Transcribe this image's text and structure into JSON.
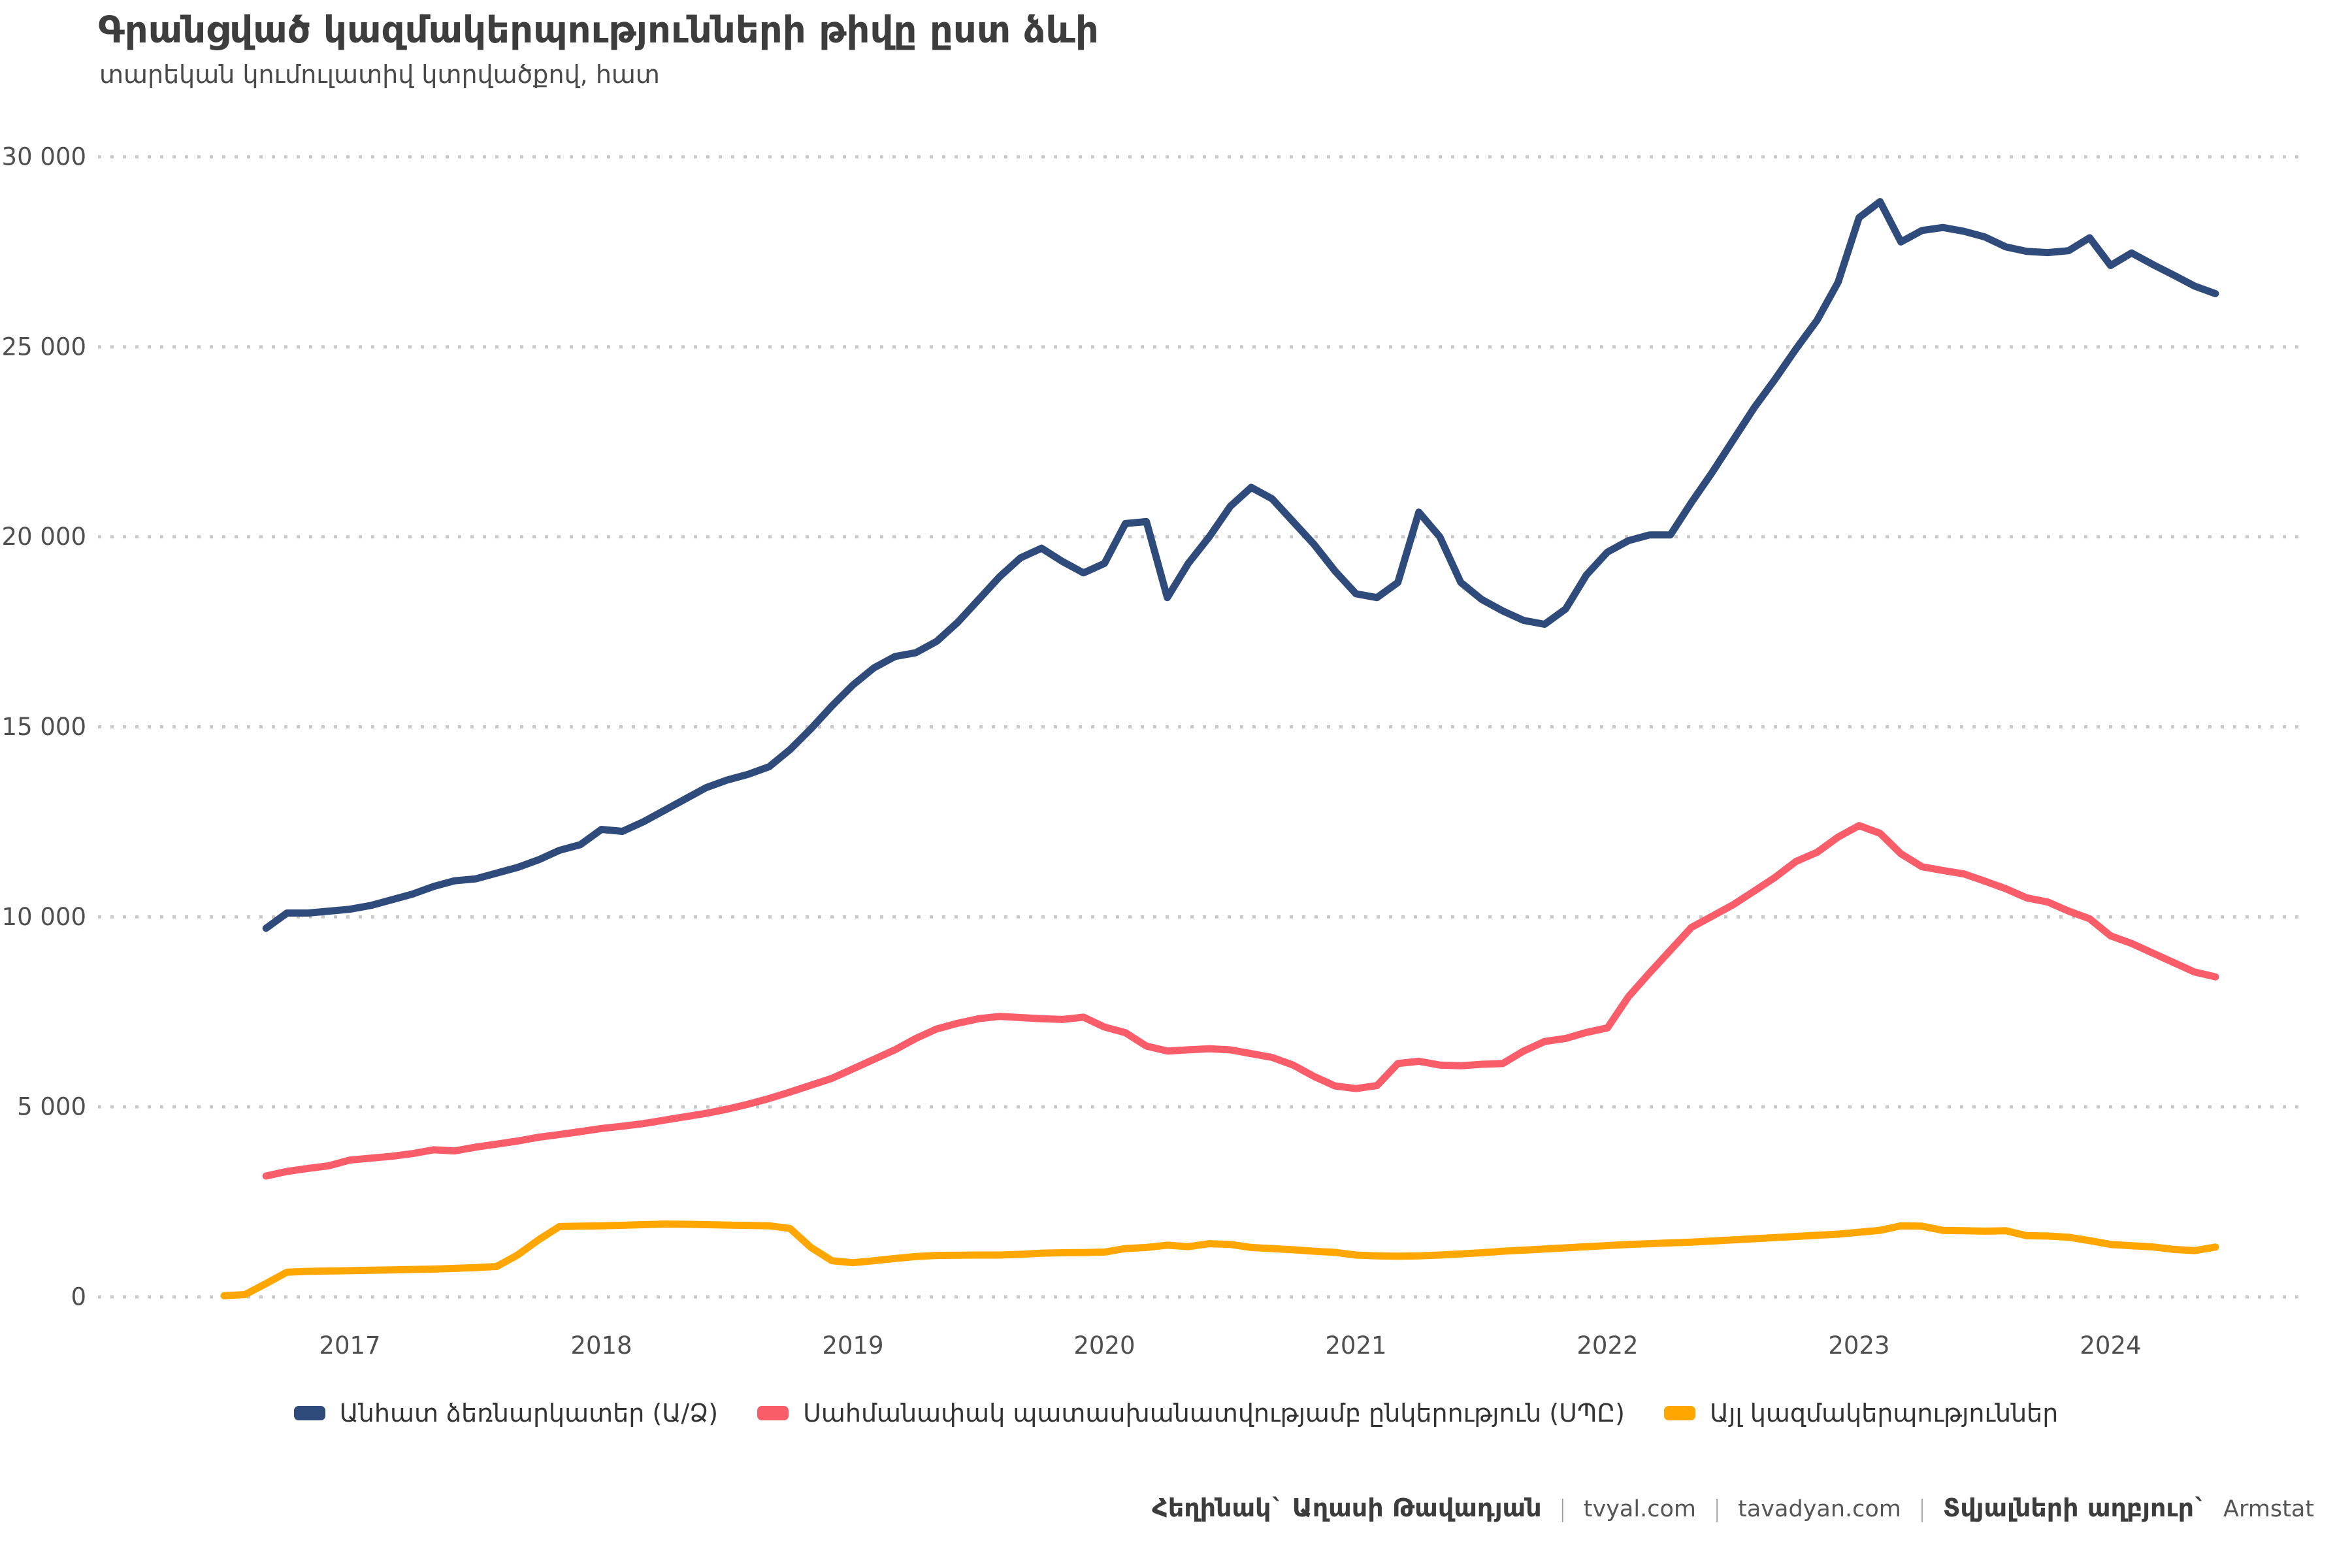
{
  "header": {
    "title": "Գրանցված կազմակերպությունների թիվը ըստ ձևի",
    "subtitle": "տարեկան կումուլատիվ կտրվածքով, հատ"
  },
  "footer": {
    "author": "Հեղինակ` Աղասի Թավադյան",
    "separator": "|",
    "site1": "tvyal.com",
    "site2": "tavadyan.com",
    "source_label": "Տվյալների աղբյուր`",
    "source_value": "Armstat"
  },
  "colors": {
    "navy": "#2f4b7c",
    "red": "#f95d6a",
    "orange": "#ffa600",
    "gridline": "#c9c9c9",
    "axis_text": "#4f4f4f"
  },
  "chart_data": {
    "type": "line",
    "title": "Գրանցված կազմակերպությունների թիվը ըստ ձևի",
    "subtitle": "տարեկան կումուլատիվ կտրվածքով, հատ",
    "xlabel": "",
    "ylabel": "",
    "ylim": [
      0,
      30000
    ],
    "grid": "horizontal-dotted",
    "legend_position": "bottom-center",
    "x_start_month": "2016-07",
    "x_end_month": "2024-06",
    "y_ticks": [
      {
        "value": 0,
        "label": "0"
      },
      {
        "value": 5000,
        "label": "5 000"
      },
      {
        "value": 10000,
        "label": "10 000"
      },
      {
        "value": 15000,
        "label": "15 000"
      },
      {
        "value": 20000,
        "label": "20 000"
      },
      {
        "value": 25000,
        "label": "25 000"
      },
      {
        "value": 30000,
        "label": "30 000"
      }
    ],
    "x_ticks": [
      {
        "label": "2017",
        "month_offset": 6
      },
      {
        "label": "2018",
        "month_offset": 18
      },
      {
        "label": "2019",
        "month_offset": 30
      },
      {
        "label": "2020",
        "month_offset": 42
      },
      {
        "label": "2021",
        "month_offset": 54
      },
      {
        "label": "2022",
        "month_offset": 66
      },
      {
        "label": "2023",
        "month_offset": 78
      },
      {
        "label": "2024",
        "month_offset": 90
      }
    ],
    "series": [
      {
        "id": "individual-entrepreneurs",
        "label": "Անհատ ձեռնարկատեր (Ա/Ձ)",
        "color": "#2f4b7c",
        "start_month": "2016-09",
        "start_month_offset": 2,
        "values": [
          9700,
          10100,
          10100,
          10150,
          10200,
          10300,
          10450,
          10600,
          10800,
          10950,
          11000,
          11150,
          11300,
          11500,
          11750,
          11900,
          12300,
          12250,
          12500,
          12800,
          13100,
          13400,
          13600,
          13750,
          13950,
          14400,
          14950,
          15550,
          16100,
          16550,
          16850,
          16950,
          17250,
          17750,
          18350,
          18950,
          19450,
          19700,
          19350,
          19050,
          19300,
          20350,
          20400,
          18400,
          19300,
          20000,
          20800,
          21300,
          21000,
          20400,
          19800,
          19100,
          18500,
          18400,
          18800,
          20650,
          20000,
          18800,
          18350,
          18050,
          17800,
          17700,
          18100,
          19000,
          19600,
          19900,
          20050,
          20050,
          20900,
          21700,
          22550,
          23400,
          24150,
          24950,
          25700,
          26700,
          28400,
          28820,
          27760,
          28060,
          28140,
          28040,
          27890,
          27630,
          27510,
          27480,
          27530,
          27870,
          27140,
          27470,
          27170,
          26890,
          26600,
          26400
        ]
      },
      {
        "id": "llc",
        "label": "Սահմանափակ պատասխանատվությամբ ընկերություն (ՍՊԸ)",
        "color": "#f95d6a",
        "start_month": "2016-09",
        "start_month_offset": 2,
        "values": [
          3180,
          3300,
          3380,
          3450,
          3600,
          3650,
          3700,
          3770,
          3870,
          3840,
          3940,
          4020,
          4100,
          4200,
          4270,
          4350,
          4430,
          4490,
          4560,
          4650,
          4740,
          4830,
          4940,
          5070,
          5220,
          5390,
          5570,
          5750,
          6000,
          6250,
          6500,
          6800,
          7050,
          7200,
          7320,
          7380,
          7350,
          7320,
          7300,
          7360,
          7100,
          6950,
          6600,
          6470,
          6500,
          6530,
          6500,
          6400,
          6300,
          6100,
          5800,
          5550,
          5480,
          5560,
          6140,
          6200,
          6100,
          6080,
          6120,
          6140,
          6470,
          6720,
          6800,
          6960,
          7080,
          7900,
          8520,
          9120,
          9720,
          10020,
          10320,
          10680,
          11040,
          11460,
          11700,
          12100,
          12400,
          12200,
          11660,
          11320,
          11220,
          11130,
          10940,
          10740,
          10500,
          10390,
          10150,
          9950,
          9500,
          9300,
          9050,
          8800,
          8550,
          8420
        ]
      },
      {
        "id": "other-organizations",
        "label": "Այլ կազմակերպություններ",
        "color": "#ffa600",
        "start_month": "2016-07",
        "start_month_offset": 0,
        "values": [
          30,
          60,
          350,
          650,
          670,
          680,
          690,
          700,
          710,
          720,
          730,
          750,
          770,
          800,
          1100,
          1500,
          1850,
          1860,
          1870,
          1885,
          1900,
          1915,
          1910,
          1900,
          1890,
          1880,
          1870,
          1800,
          1300,
          950,
          900,
          950,
          1010,
          1060,
          1090,
          1095,
          1100,
          1100,
          1120,
          1150,
          1160,
          1165,
          1180,
          1270,
          1300,
          1360,
          1320,
          1400,
          1380,
          1300,
          1270,
          1240,
          1200,
          1170,
          1100,
          1080,
          1070,
          1080,
          1100,
          1130,
          1160,
          1200,
          1230,
          1260,
          1290,
          1320,
          1350,
          1380,
          1400,
          1420,
          1440,
          1470,
          1500,
          1530,
          1560,
          1590,
          1620,
          1650,
          1700,
          1750,
          1870,
          1860,
          1750,
          1740,
          1730,
          1740,
          1610,
          1600,
          1570,
          1480,
          1380,
          1345,
          1315,
          1250,
          1215,
          1310
        ]
      }
    ]
  }
}
